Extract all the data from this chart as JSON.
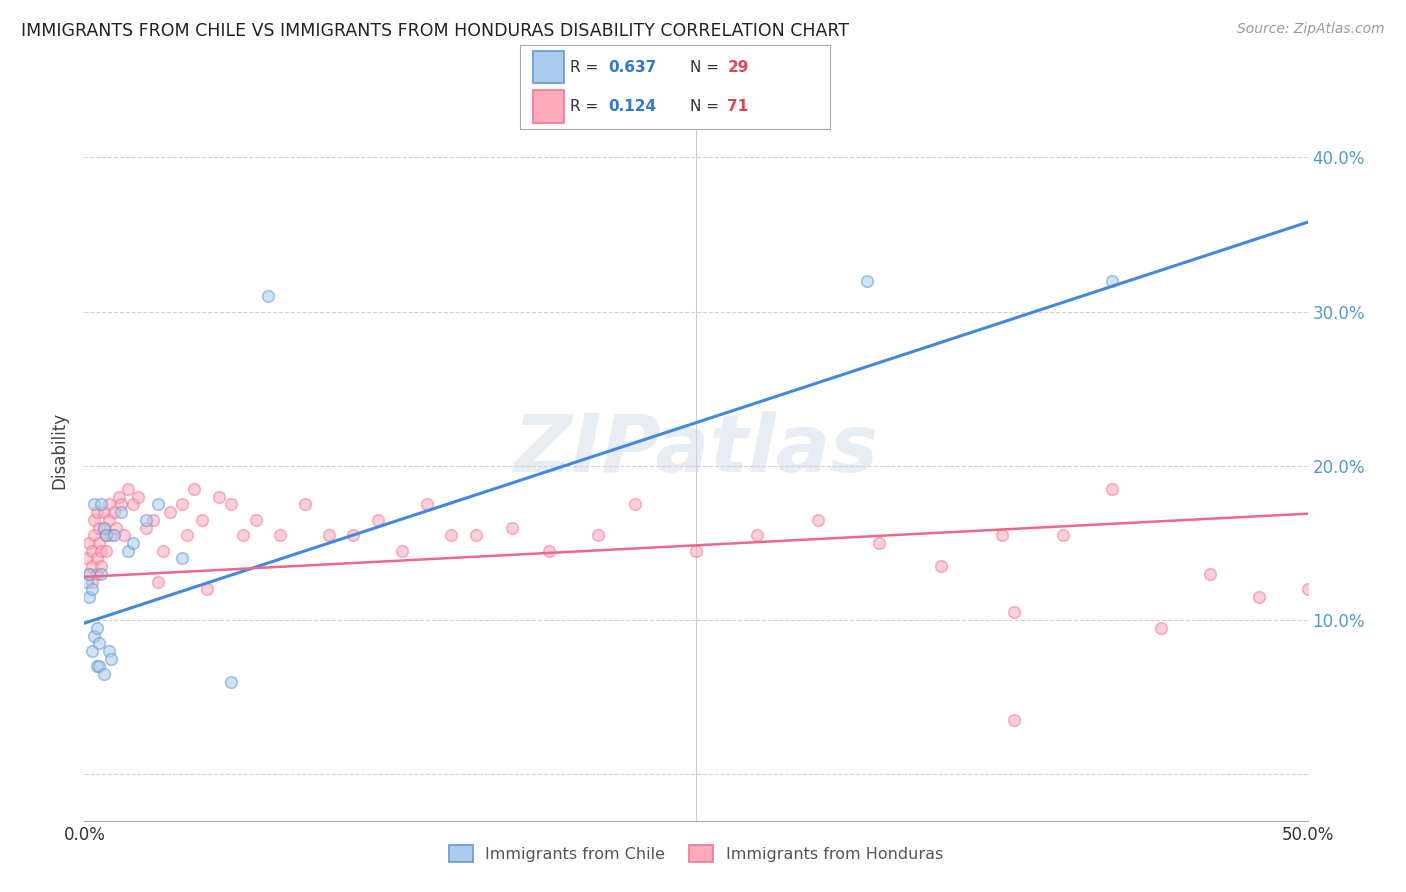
{
  "title": "IMMIGRANTS FROM CHILE VS IMMIGRANTS FROM HONDURAS DISABILITY CORRELATION CHART",
  "source": "Source: ZipAtlas.com",
  "ylabel": "Disability",
  "xlim": [
    0.0,
    0.5
  ],
  "ylim": [
    -0.03,
    0.45
  ],
  "yticks": [
    0.0,
    0.1,
    0.2,
    0.3,
    0.4
  ],
  "background_color": "#ffffff",
  "grid_color": "#cccccc",
  "watermark": "ZIPatlas",
  "chile_face": "#aaccee",
  "chile_edge": "#6699cc",
  "honduras_face": "#ffaabb",
  "honduras_edge": "#ee7799",
  "line_chile_color": "#4488dd",
  "line_honduras_color": "#ee6688",
  "legend_label_chile": "Immigrants from Chile",
  "legend_label_honduras": "Immigrants from Honduras",
  "line_chile_intercept": 0.098,
  "line_chile_slope": 0.52,
  "line_honduras_intercept": 0.128,
  "line_honduras_slope": 0.082,
  "marker_size": 70,
  "marker_alpha": 0.55,
  "tick_color": "#5599cc"
}
